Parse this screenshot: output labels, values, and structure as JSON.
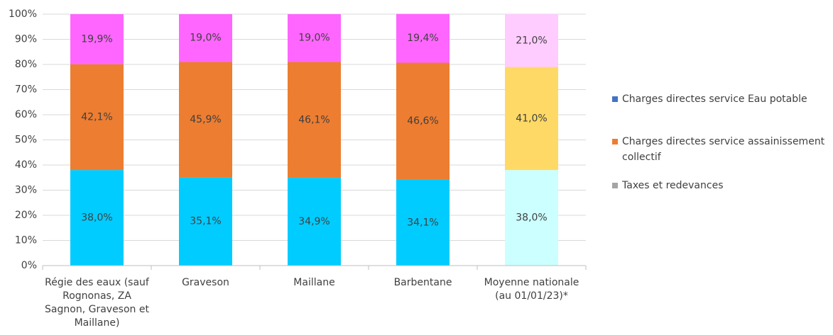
{
  "chart_data": {
    "type": "stacked_bar",
    "categories": [
      "Régie des eaux (sauf Rognonas, ZA Sagnon, Graveson et Maillane)",
      "Graveson",
      "Maillane",
      "Barbentane",
      "Moyenne nationale (au 01/01/23)*"
    ],
    "series": [
      {
        "name": "Charges directes service Eau potable",
        "color": "#4472c4",
        "bar_colors": [
          "#00ccff",
          "#00ccff",
          "#00ccff",
          "#00ccff",
          "#ccffff"
        ],
        "values": [
          38.0,
          35.1,
          34.9,
          34.1,
          38.0
        ],
        "value_labels": [
          "38,0%",
          "35,1%",
          "34,9%",
          "34,1%",
          "38,0%"
        ]
      },
      {
        "name": "Charges directes service assainissement collectif",
        "color": "#ed7d31",
        "bar_colors": [
          "#ed7d31",
          "#ed7d31",
          "#ed7d31",
          "#ed7d31",
          "#ffd966"
        ],
        "values": [
          42.1,
          45.9,
          46.1,
          46.6,
          41.0
        ],
        "value_labels": [
          "42,1%",
          "45,9%",
          "46,1%",
          "46,6%",
          "41,0%"
        ]
      },
      {
        "name": "Taxes et redevances",
        "color": "#a5a5a5",
        "bar_colors": [
          "#ff66ff",
          "#ff66ff",
          "#ff66ff",
          "#ff66ff",
          "#ffccff"
        ],
        "values": [
          19.9,
          19.0,
          19.0,
          19.4,
          21.0
        ],
        "value_labels": [
          "19,9%",
          "19,0%",
          "19,0%",
          "19,4%",
          "21,0%"
        ]
      }
    ],
    "ylim": [
      0,
      100
    ],
    "yticks": [
      {
        "value": 0,
        "label": "0%"
      },
      {
        "value": 10,
        "label": "10%"
      },
      {
        "value": 20,
        "label": "20%"
      },
      {
        "value": 30,
        "label": "30%"
      },
      {
        "value": 40,
        "label": "40%"
      },
      {
        "value": 50,
        "label": "50%"
      },
      {
        "value": 60,
        "label": "60%"
      },
      {
        "value": 70,
        "label": "70%"
      },
      {
        "value": 80,
        "label": "80%"
      },
      {
        "value": 90,
        "label": "90%"
      },
      {
        "value": 100,
        "label": "100%"
      }
    ],
    "grid": true,
    "legend": "right"
  }
}
